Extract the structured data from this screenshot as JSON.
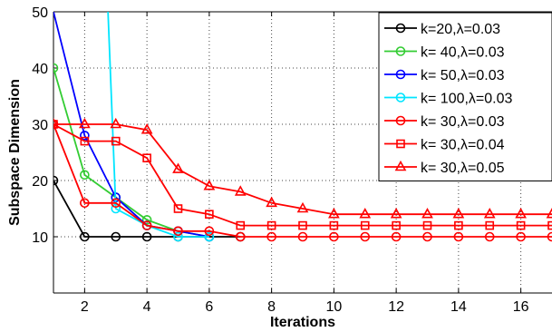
{
  "chart_data": {
    "type": "line",
    "title": "",
    "xlabel": "Iterations",
    "ylabel": "Subspace Dimension",
    "xlim": [
      1,
      17
    ],
    "ylim": [
      0,
      50
    ],
    "xticks": [
      2,
      4,
      6,
      8,
      10,
      12,
      14,
      16
    ],
    "yticks": [
      10,
      20,
      30,
      40,
      50
    ],
    "grid": true,
    "legend_position": "top-right",
    "series": [
      {
        "name": "k=20,λ=0.03",
        "color": "#000000",
        "marker": "circle",
        "x": [
          1,
          2,
          3,
          4,
          5,
          6,
          7
        ],
        "y": [
          20,
          10,
          10,
          10,
          10,
          10,
          10
        ]
      },
      {
        "name": "k= 40,λ=0.03",
        "color": "#33cc33",
        "marker": "circle",
        "x": [
          1,
          2,
          3,
          4,
          5,
          6
        ],
        "y": [
          40,
          21,
          17,
          13,
          11,
          10
        ]
      },
      {
        "name": "k= 50,λ=0.03",
        "color": "#0000ff",
        "marker": "circle",
        "x": [
          1,
          2,
          3,
          4,
          5,
          6
        ],
        "y": [
          50,
          28,
          17,
          12,
          11,
          10
        ]
      },
      {
        "name": "k= 100,λ=0.03",
        "color": "#00e5ff",
        "marker": "circle",
        "x": [
          2.75,
          3,
          4,
          5,
          6
        ],
        "y": [
          50,
          15,
          12,
          10,
          10
        ]
      },
      {
        "name": "k= 30,λ=0.03",
        "color": "#ff0000",
        "marker": "circle",
        "x": [
          1,
          2,
          3,
          4,
          5,
          6,
          7,
          8,
          9,
          10,
          11,
          12,
          13,
          14,
          15,
          16,
          17
        ],
        "y": [
          30,
          16,
          16,
          12,
          11,
          11,
          10,
          10,
          10,
          10,
          10,
          10,
          10,
          10,
          10,
          10,
          10
        ]
      },
      {
        "name": "k= 30,λ=0.04",
        "color": "#ff0000",
        "marker": "square",
        "x": [
          1,
          2,
          3,
          4,
          5,
          6,
          7,
          8,
          9,
          10,
          11,
          12,
          13,
          14,
          15,
          16,
          17
        ],
        "y": [
          30,
          27,
          27,
          24,
          15,
          14,
          12,
          12,
          12,
          12,
          12,
          12,
          12,
          12,
          12,
          12,
          12
        ]
      },
      {
        "name": "k= 30,λ=0.05",
        "color": "#ff0000",
        "marker": "triangle",
        "x": [
          1,
          2,
          3,
          4,
          5,
          6,
          7,
          8,
          9,
          10,
          11,
          12,
          13,
          14,
          15,
          16,
          17
        ],
        "y": [
          30,
          30,
          30,
          29,
          22,
          19,
          18,
          16,
          15,
          14,
          14,
          14,
          14,
          14,
          14,
          14,
          14
        ]
      }
    ]
  }
}
